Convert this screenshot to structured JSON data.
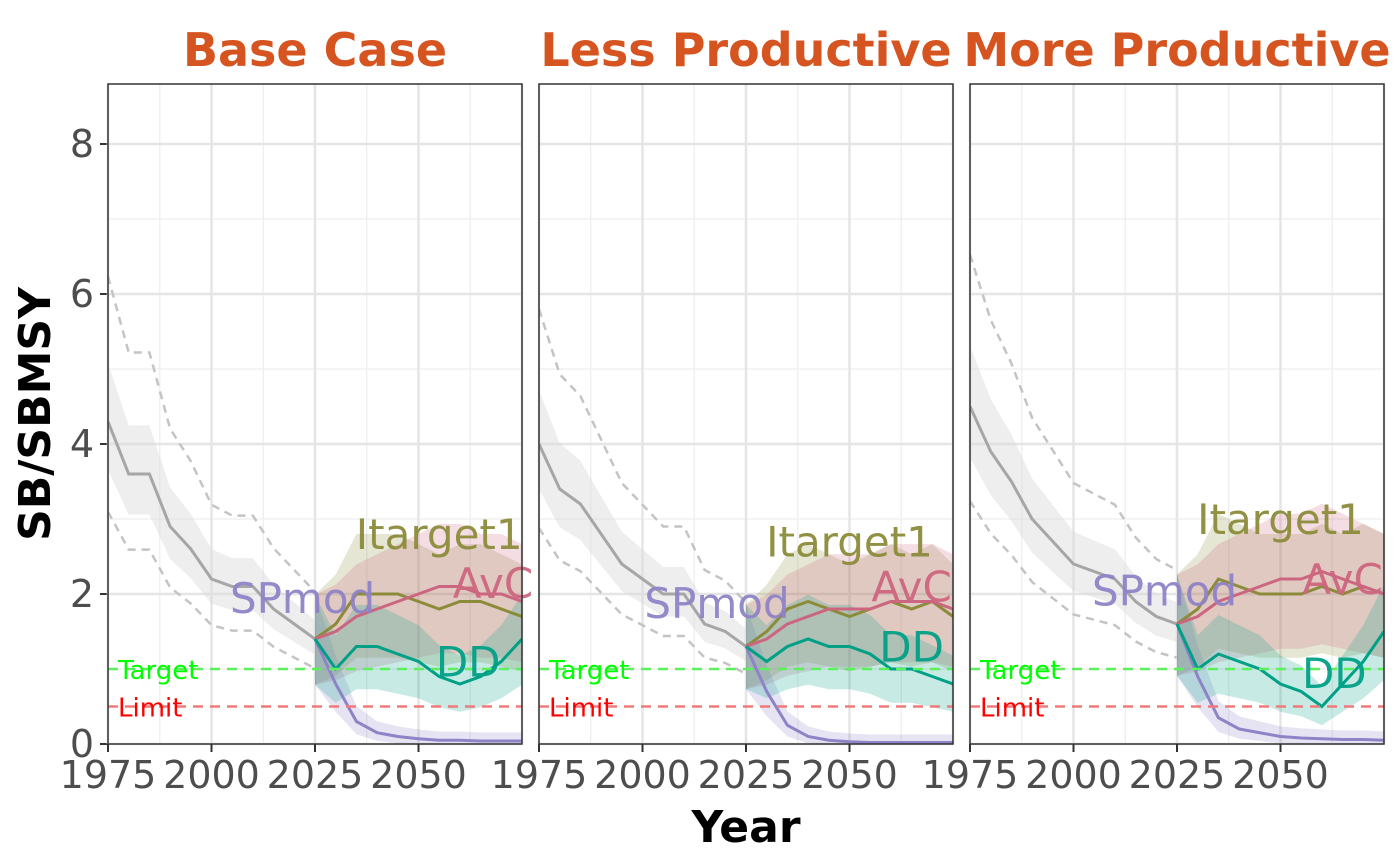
{
  "chart_data": {
    "type": "line",
    "xlabel": "Year",
    "ylabel": "SB/SBMSY",
    "xlim": [
      1975,
      2075
    ],
    "ylim": [
      0,
      8.8
    ],
    "x_ticks": [
      1975,
      2000,
      2025,
      2050
    ],
    "x_tick_labels": [
      "1975",
      "2000",
      "2025",
      "2050"
    ],
    "y_ticks": [
      0,
      2,
      4,
      6,
      8
    ],
    "y_tick_labels": [
      "0",
      "2",
      "4",
      "6",
      "8"
    ],
    "grid": true,
    "legend": "none",
    "reference_lines": [
      {
        "name": "Target",
        "y": 1.0,
        "color": "#5CF05C"
      },
      {
        "name": "Limit",
        "y": 0.5,
        "color": "#F07A7A"
      }
    ],
    "reference_label_colors": {
      "Target": "#00FF00",
      "Limit": "#FF0000"
    },
    "mp_colors": {
      "Itarget1": "#8B8B3A",
      "AvC": "#CC6680",
      "SPmod": "#8E83C6",
      "DD": "#00A087",
      "historical": "#A6A6A6"
    },
    "panels": [
      {
        "title": "Base Case",
        "historical": {
          "x": [
            1975,
            1980,
            1985,
            1990,
            1995,
            2000,
            2005,
            2010,
            2015,
            2020,
            2025
          ],
          "y": [
            4.3,
            3.6,
            3.6,
            2.9,
            2.6,
            2.2,
            2.1,
            2.1,
            1.8,
            1.6,
            1.4
          ]
        },
        "projection_x": [
          2025,
          2030,
          2035,
          2040,
          2045,
          2050,
          2055,
          2060,
          2065,
          2070,
          2075
        ],
        "series": [
          {
            "name": "Itarget1",
            "y": [
              1.4,
              1.6,
              2.0,
              2.0,
              2.0,
              1.9,
              1.8,
              1.9,
              1.9,
              1.8,
              1.7
            ],
            "label_pos": [
              2055,
              2.8
            ]
          },
          {
            "name": "AvC",
            "y": [
              1.4,
              1.5,
              1.7,
              1.8,
              1.9,
              2.0,
              2.1,
              2.1,
              2.0,
              2.0,
              1.9
            ],
            "label_pos": [
              2068,
              2.15
            ]
          },
          {
            "name": "SPmod",
            "y": [
              1.4,
              0.8,
              0.3,
              0.15,
              0.1,
              0.07,
              0.05,
              0.05,
              0.04,
              0.04,
              0.04
            ],
            "label_pos": [
              2022,
              1.95
            ]
          },
          {
            "name": "DD",
            "y": [
              1.4,
              1.0,
              1.3,
              1.3,
              1.2,
              1.1,
              0.9,
              0.8,
              0.9,
              1.1,
              1.4
            ],
            "label_pos": [
              2062,
              1.1
            ]
          }
        ]
      },
      {
        "title": "Less Productive",
        "historical": {
          "x": [
            1975,
            1980,
            1985,
            1990,
            1995,
            2000,
            2005,
            2010,
            2015,
            2020,
            2025
          ],
          "y": [
            4.0,
            3.4,
            3.2,
            2.8,
            2.4,
            2.2,
            2.0,
            2.0,
            1.6,
            1.5,
            1.3
          ]
        },
        "projection_x": [
          2025,
          2030,
          2035,
          2040,
          2045,
          2050,
          2055,
          2060,
          2065,
          2070,
          2075
        ],
        "series": [
          {
            "name": "Itarget1",
            "y": [
              1.3,
              1.5,
              1.8,
              1.9,
              1.8,
              1.7,
              1.8,
              1.9,
              1.8,
              1.9,
              1.7
            ],
            "label_pos": [
              2050,
              2.7
            ]
          },
          {
            "name": "AvC",
            "y": [
              1.3,
              1.4,
              1.6,
              1.7,
              1.8,
              1.8,
              1.8,
              1.9,
              1.9,
              1.9,
              1.8
            ],
            "label_pos": [
              2065,
              2.1
            ]
          },
          {
            "name": "SPmod",
            "y": [
              1.3,
              0.7,
              0.25,
              0.1,
              0.05,
              0.03,
              0.02,
              0.02,
              0.02,
              0.02,
              0.02
            ],
            "label_pos": [
              2018,
              1.88
            ]
          },
          {
            "name": "DD",
            "y": [
              1.3,
              1.1,
              1.3,
              1.4,
              1.3,
              1.3,
              1.2,
              1.0,
              1.0,
              0.9,
              0.8
            ],
            "label_pos": [
              2065,
              1.3
            ]
          }
        ]
      },
      {
        "title": "More Productive",
        "historical": {
          "x": [
            1975,
            1980,
            1985,
            1990,
            1995,
            2000,
            2005,
            2010,
            2015,
            2020,
            2025
          ],
          "y": [
            4.5,
            3.9,
            3.5,
            3.0,
            2.7,
            2.4,
            2.3,
            2.2,
            1.9,
            1.7,
            1.6
          ]
        },
        "projection_x": [
          2025,
          2030,
          2035,
          2040,
          2045,
          2050,
          2055,
          2060,
          2065,
          2070,
          2075
        ],
        "series": [
          {
            "name": "Itarget1",
            "y": [
              1.6,
              1.8,
              2.2,
              2.1,
              2.0,
              2.0,
              2.0,
              2.1,
              2.0,
              2.1,
              2.0
            ],
            "label_pos": [
              2050,
              3.0
            ]
          },
          {
            "name": "AvC",
            "y": [
              1.6,
              1.7,
              1.9,
              2.0,
              2.1,
              2.2,
              2.2,
              2.3,
              2.2,
              2.1,
              2.0
            ],
            "label_pos": [
              2065,
              2.2
            ]
          },
          {
            "name": "SPmod",
            "y": [
              1.6,
              0.9,
              0.35,
              0.2,
              0.15,
              0.1,
              0.08,
              0.07,
              0.06,
              0.06,
              0.05
            ],
            "label_pos": [
              2022,
              2.05
            ]
          },
          {
            "name": "DD",
            "y": [
              1.6,
              1.0,
              1.2,
              1.1,
              1.0,
              0.8,
              0.7,
              0.5,
              0.8,
              1.1,
              1.5
            ],
            "label_pos": [
              2063,
              0.95
            ]
          }
        ]
      }
    ]
  }
}
